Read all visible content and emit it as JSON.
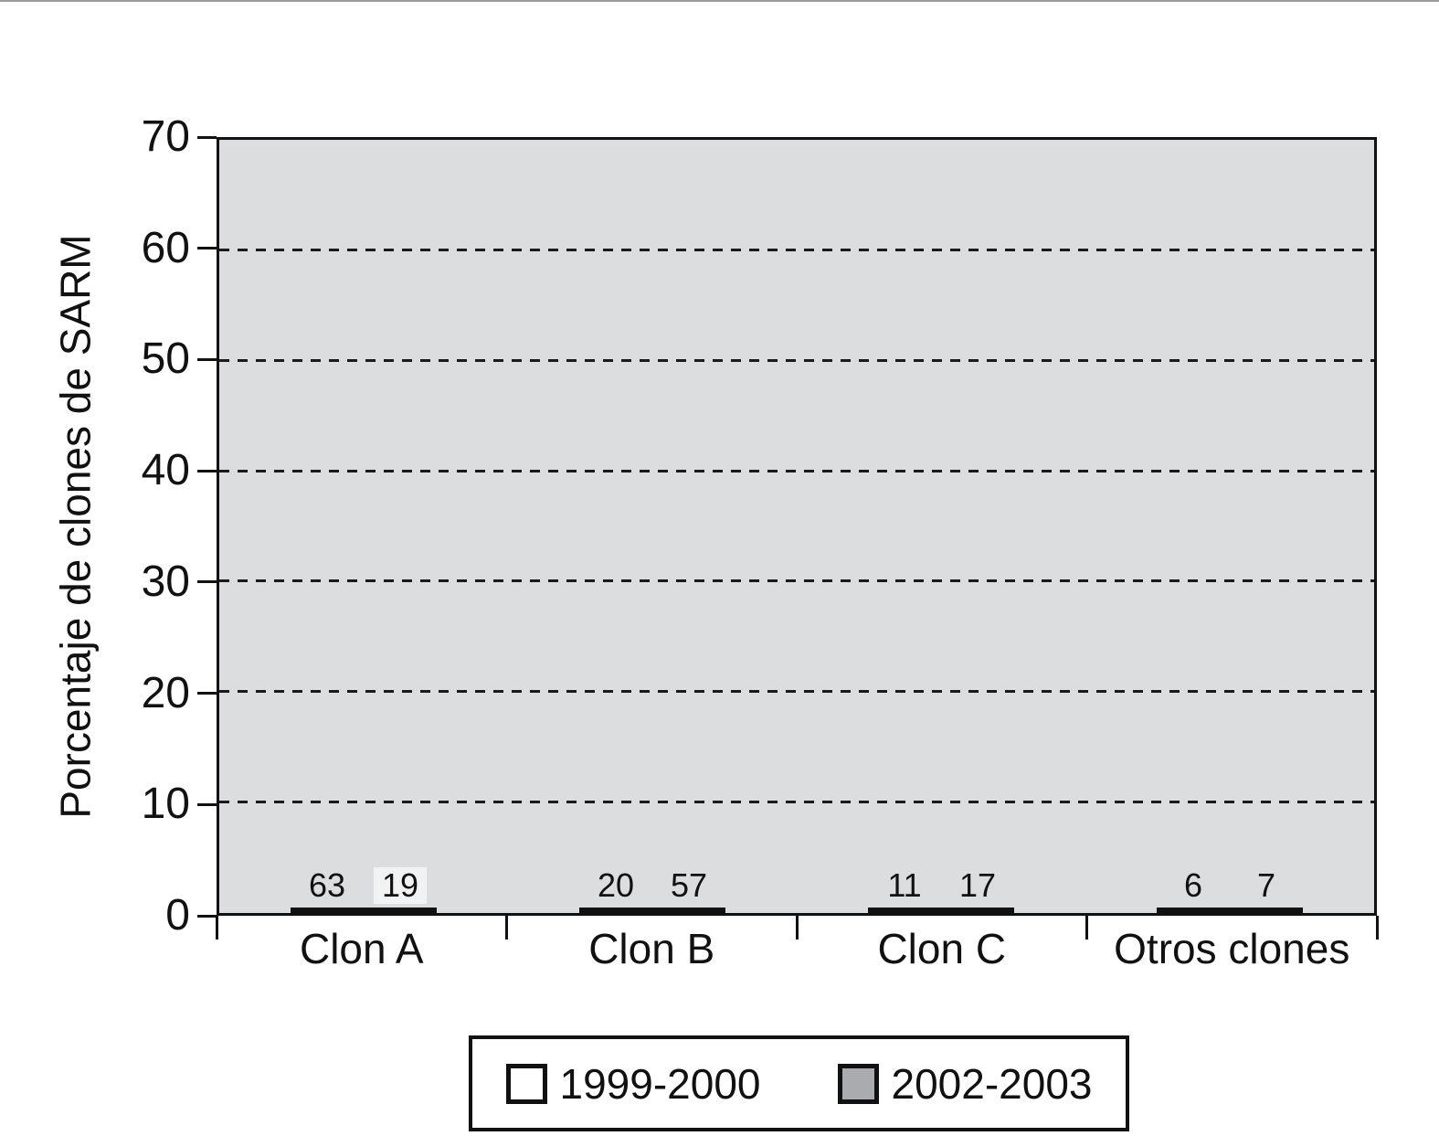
{
  "figure": {
    "background": "#ffffff",
    "top_rule_color": "#9c9c9c"
  },
  "chart_data": {
    "type": "bar",
    "title": "",
    "xlabel": "",
    "ylabel": "Porcentaje de clones de SARM",
    "categories": [
      "Clon A",
      "Clon B",
      "Clon C",
      "Otros clones"
    ],
    "series": [
      {
        "name": "1999-2000",
        "color": "#ffffff",
        "values": [
          63,
          20,
          11,
          6
        ]
      },
      {
        "name": "2002-2003",
        "color": "#a9abae",
        "values": [
          19,
          57,
          17,
          7
        ]
      }
    ],
    "ylim": [
      0,
      70
    ],
    "y_ticks": [
      0,
      10,
      20,
      30,
      40,
      50,
      60,
      70
    ],
    "gridline_values": [
      10,
      20,
      30,
      40,
      50,
      60
    ],
    "grid": "dashed-horizontal",
    "plot_background": "#dcddde",
    "bar_border_color": "#111111",
    "value_labels_shown": true,
    "legend_position": "bottom-center"
  }
}
